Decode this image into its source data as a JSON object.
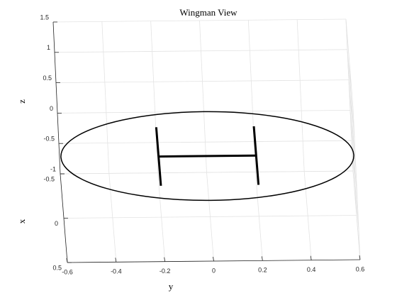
{
  "chart_data": {
    "type": "line3d",
    "title": "Wingman View",
    "xlabel": "x",
    "ylabel": "y",
    "zlabel": "z",
    "xlim": [
      -0.5,
      0.5
    ],
    "ylim": [
      -0.6,
      0.6
    ],
    "zlim": [
      -1,
      1.5
    ],
    "xticks": [
      -0.5,
      0,
      0.5
    ],
    "yticks": [
      -0.6,
      -0.4,
      -0.2,
      0,
      0.2,
      0.4,
      0.6
    ],
    "zticks": [
      -1,
      -0.5,
      0,
      0.5,
      1,
      1.5
    ],
    "grid": true,
    "series": [
      {
        "color": "#000000",
        "width": 1.5,
        "y": [
          0.6,
          0.58,
          0.52,
          0.424,
          0.3,
          0.155,
          0,
          -0.155,
          -0.3,
          -0.424,
          -0.52,
          -0.58,
          -0.6,
          -0.58,
          -0.52,
          -0.424,
          -0.3,
          -0.155,
          0,
          0.155,
          0.3,
          0.424,
          0.52,
          0.58,
          0.6
        ],
        "x": [
          0,
          0.129,
          0.25,
          0.354,
          0.433,
          0.483,
          0.5,
          0.483,
          0.433,
          0.354,
          0.25,
          0.129,
          0,
          -0.129,
          -0.25,
          -0.354,
          -0.433,
          -0.483,
          -0.5,
          -0.483,
          -0.433,
          -0.354,
          -0.25,
          -0.129,
          0
        ],
        "z": [
          0,
          0,
          0,
          0,
          0,
          0,
          0,
          0,
          0,
          0,
          0,
          0,
          0,
          0,
          0,
          0,
          0,
          0,
          0,
          0,
          0,
          0,
          0,
          0,
          0
        ]
      },
      {
        "color": "#000000",
        "width": 3,
        "y": [
          -0.2,
          -0.2
        ],
        "x": [
          -0.33,
          0.33
        ],
        "z": [
          0,
          0
        ]
      },
      {
        "color": "#000000",
        "width": 3,
        "y": [
          0.2,
          0.2
        ],
        "x": [
          -0.33,
          0.33
        ],
        "z": [
          0,
          0
        ]
      },
      {
        "color": "#000000",
        "width": 3,
        "y": [
          -0.2,
          0.2
        ],
        "x": [
          0,
          0
        ],
        "z": [
          0,
          0
        ]
      }
    ]
  }
}
